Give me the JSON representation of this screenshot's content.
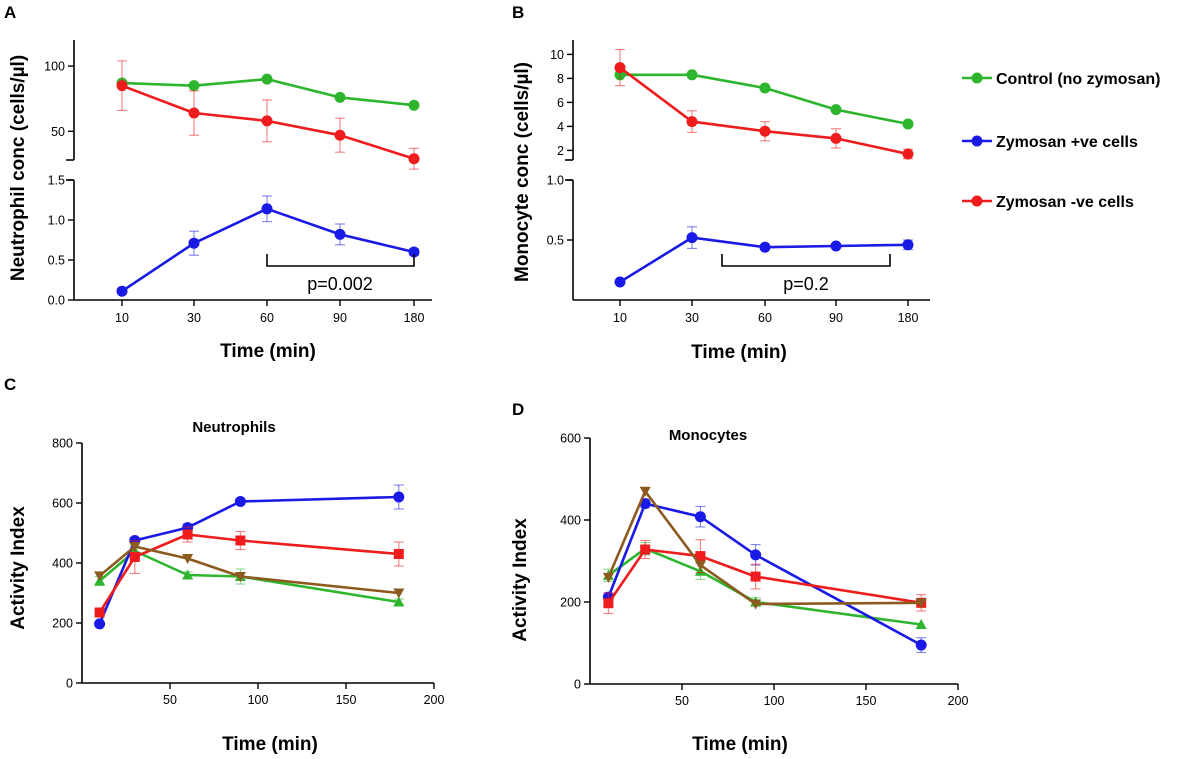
{
  "colors": {
    "control": "#2db52d",
    "zymo_pos": "#1a1ae6",
    "zymo_neg": "#ee1c1c",
    "brown": "#8b5a1e"
  },
  "legend": {
    "control": "Control (no zymosan)",
    "zymo_pos": "Zymosan +ve cells",
    "zymo_neg": "Zymosan -ve cells"
  },
  "chart_data": [
    {
      "id": "A",
      "panel_letter": "A",
      "type": "line",
      "ylabel": "Neutrophil conc (cells/µl)",
      "xlabel": "Time (min)",
      "categories": [
        "10",
        "30",
        "60",
        "90",
        "180"
      ],
      "upper_ylim": [
        28,
        120
      ],
      "upper_ticks": [
        "50",
        "100"
      ],
      "lower_ylim": [
        0,
        1.5
      ],
      "lower_ticks": [
        "0.0",
        "0.5",
        "1.0",
        "1.5"
      ],
      "series_upper": [
        {
          "name": "Control (no zymosan)",
          "color_key": "control",
          "values": [
            87,
            85,
            90,
            76,
            70
          ],
          "errors": [
            0,
            0,
            0,
            0,
            0
          ]
        },
        {
          "name": "Zymosan -ve cells",
          "color_key": "zymo_neg",
          "values": [
            85,
            64,
            58,
            47,
            29
          ],
          "errors": [
            19,
            17,
            16,
            13,
            8
          ]
        }
      ],
      "series_lower": [
        {
          "name": "Zymosan +ve cells",
          "color_key": "zymo_pos",
          "values": [
            0.11,
            0.71,
            1.14,
            0.82,
            0.6
          ],
          "errors": [
            0,
            0.15,
            0.16,
            0.13,
            0.04
          ]
        }
      ],
      "annotation": {
        "text": "p=0.002",
        "from_index": 2,
        "to_index": 4
      }
    },
    {
      "id": "B",
      "panel_letter": "B",
      "type": "line",
      "ylabel": "Monocyte conc (cells/µl)",
      "xlabel": "Time (min)",
      "categories": [
        "10",
        "30",
        "60",
        "90",
        "180"
      ],
      "upper_ylim": [
        1.2,
        11.2
      ],
      "upper_ticks": [
        "2",
        "4",
        "6",
        "8",
        "10"
      ],
      "lower_ylim": [
        0,
        1.0
      ],
      "lower_ticks": [
        "0.5",
        "1.0"
      ],
      "series_upper": [
        {
          "name": "Control (no zymosan)",
          "color_key": "control",
          "values": [
            8.3,
            8.3,
            7.2,
            5.4,
            4.2
          ],
          "errors": [
            0,
            0,
            0,
            0,
            0
          ]
        },
        {
          "name": "Zymosan -ve cells",
          "color_key": "zymo_neg",
          "values": [
            8.9,
            4.4,
            3.6,
            3.0,
            1.7
          ],
          "errors": [
            1.5,
            0.9,
            0.8,
            0.8,
            0.4
          ]
        }
      ],
      "series_lower": [
        {
          "name": "Zymosan +ve cells",
          "color_key": "zymo_pos",
          "values": [
            0.15,
            0.52,
            0.44,
            0.45,
            0.46
          ],
          "errors": [
            0,
            0.09,
            0,
            0,
            0.04
          ]
        }
      ],
      "annotation": {
        "text": "p=0.2",
        "from_index": 1.45,
        "to_index": 3.7
      }
    },
    {
      "id": "C",
      "panel_letter": "C",
      "type": "line",
      "title": "Neutrophils",
      "ylabel": "Activity Index",
      "xlabel": "Time (min)",
      "xlim": [
        0,
        200
      ],
      "xticks": [
        "50",
        "100",
        "150",
        "200"
      ],
      "ylim": [
        0,
        800
      ],
      "yticks": [
        "0",
        "200",
        "400",
        "600",
        "800"
      ],
      "series": [
        {
          "color_key": "control",
          "marker": "triangle-up",
          "x": [
            10,
            30,
            60,
            90,
            180
          ],
          "values": [
            340,
            440,
            360,
            355,
            270
          ],
          "errors": [
            15,
            20,
            10,
            25,
            10
          ]
        },
        {
          "color_key": "zymo_pos",
          "marker": "circle",
          "x": [
            10,
            30,
            60,
            90,
            180
          ],
          "values": [
            197,
            475,
            518,
            605,
            620
          ],
          "errors": [
            0,
            10,
            12,
            10,
            40
          ]
        },
        {
          "color_key": "zymo_neg",
          "marker": "square",
          "x": [
            10,
            30,
            60,
            90,
            180
          ],
          "values": [
            235,
            420,
            495,
            475,
            430
          ],
          "errors": [
            10,
            55,
            25,
            30,
            40
          ]
        },
        {
          "color_key": "brown",
          "marker": "triangle-down",
          "x": [
            10,
            30,
            60,
            90,
            180
          ],
          "values": [
            357,
            455,
            415,
            355,
            300
          ],
          "errors": [
            0,
            0,
            0,
            0,
            0
          ]
        }
      ]
    },
    {
      "id": "D",
      "panel_letter": "D",
      "type": "line",
      "title": "Monocytes",
      "ylabel": "Activity Index",
      "xlabel": "Time (min)",
      "xlim": [
        0,
        200
      ],
      "xticks": [
        "50",
        "100",
        "150",
        "200"
      ],
      "ylim": [
        0,
        600
      ],
      "yticks": [
        "0",
        "200",
        "400",
        "600"
      ],
      "series": [
        {
          "color_key": "control",
          "marker": "triangle-up",
          "x": [
            10,
            30,
            60,
            90,
            180
          ],
          "values": [
            265,
            330,
            275,
            200,
            145
          ],
          "errors": [
            15,
            15,
            20,
            10,
            0
          ]
        },
        {
          "color_key": "zymo_pos",
          "marker": "circle",
          "x": [
            10,
            30,
            60,
            90,
            180
          ],
          "values": [
            212,
            440,
            408,
            315,
            95
          ],
          "errors": [
            10,
            10,
            25,
            25,
            18
          ]
        },
        {
          "color_key": "zymo_neg",
          "marker": "square",
          "x": [
            10,
            30,
            60,
            90,
            180
          ],
          "values": [
            197,
            328,
            312,
            262,
            198
          ],
          "errors": [
            25,
            22,
            40,
            30,
            20
          ]
        },
        {
          "color_key": "brown",
          "marker": "triangle-down",
          "x": [
            10,
            30,
            60,
            90,
            180
          ],
          "values": [
            260,
            470,
            290,
            195,
            198
          ],
          "errors": [
            0,
            0,
            0,
            0,
            0
          ]
        }
      ]
    }
  ]
}
